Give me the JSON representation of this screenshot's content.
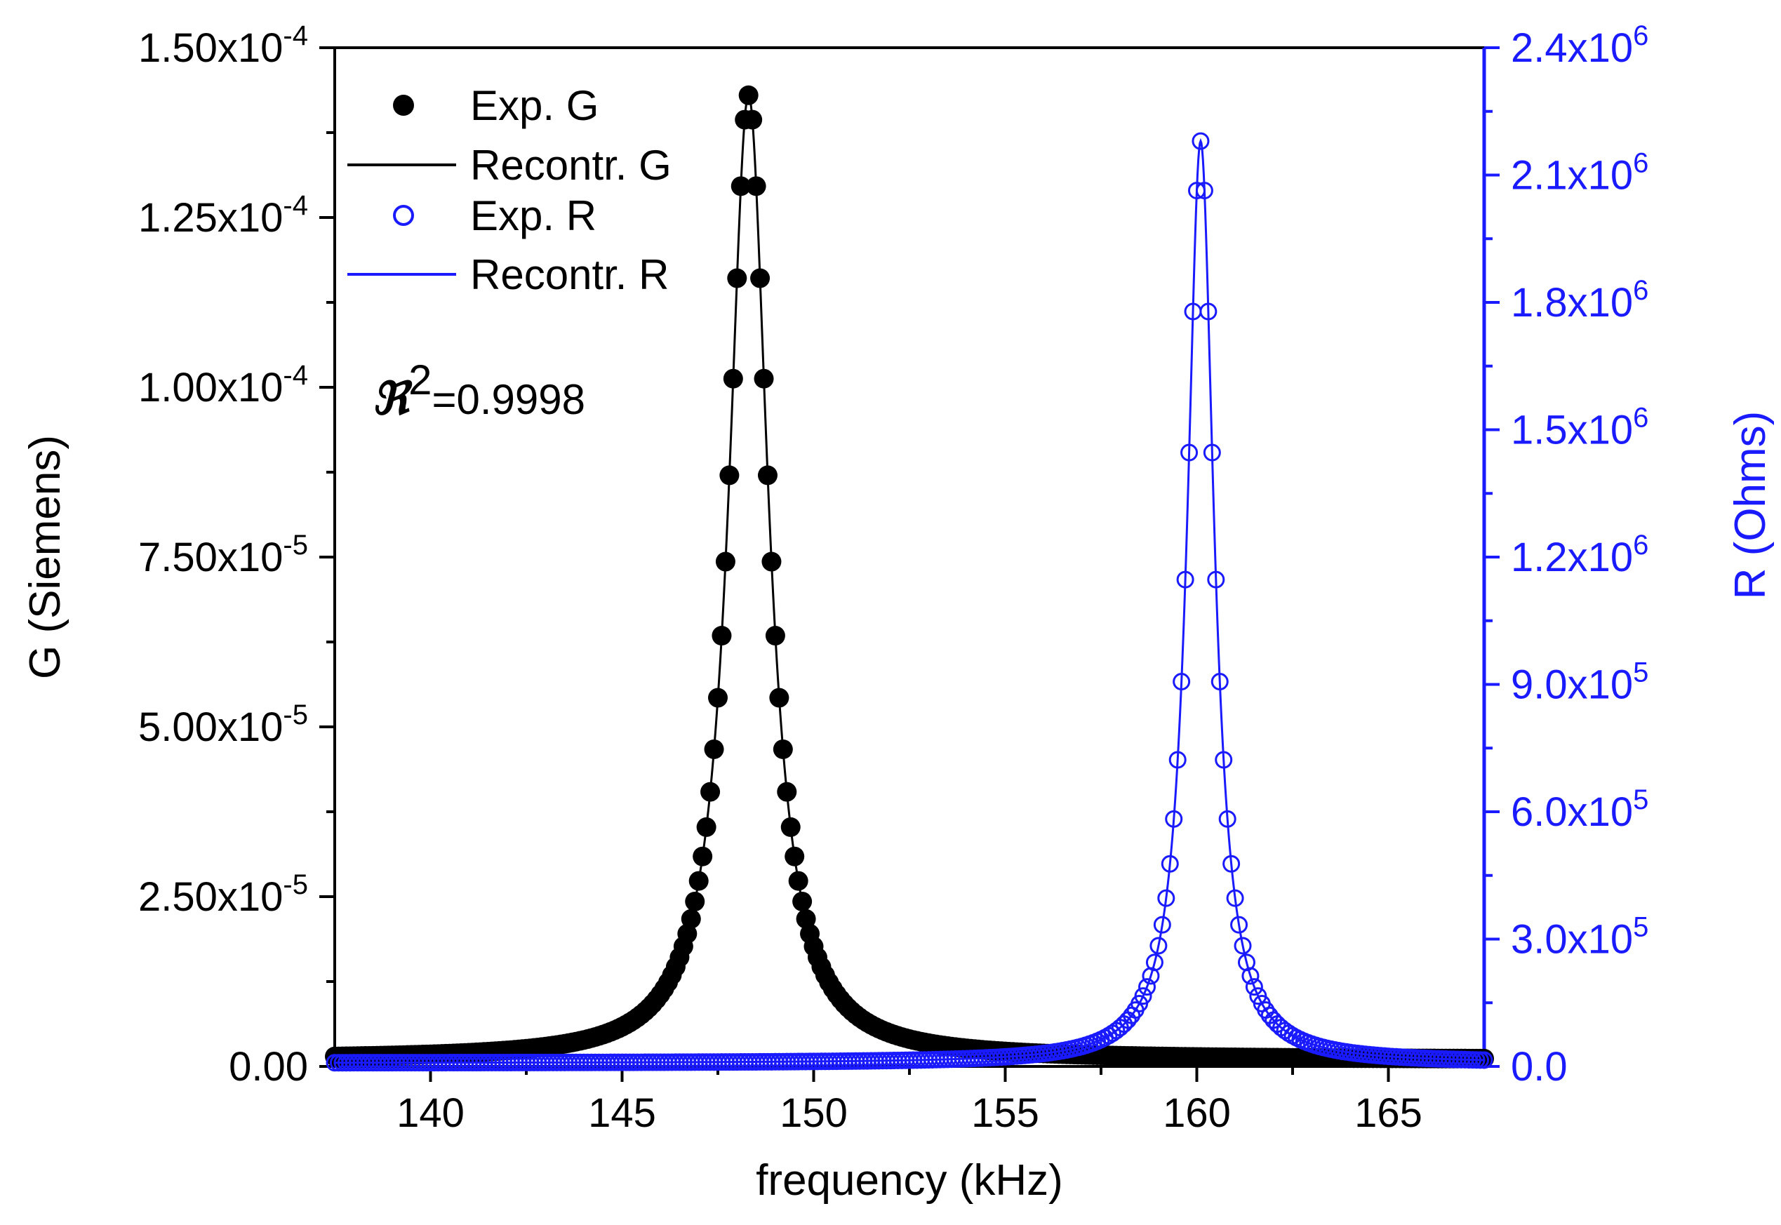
{
  "chart_data": {
    "type": "scatter",
    "title": "",
    "xlabel": "frequency (kHz)",
    "ylabel_left": "G (Siemens)",
    "ylabel_right": "R (Ohms)",
    "xlim": [
      137.5,
      167.5
    ],
    "ylim_left": [
      0,
      0.00015
    ],
    "ylim_right": [
      0,
      2400000
    ],
    "x_ticks": [
      "140",
      "145",
      "150",
      "155",
      "160",
      "165"
    ],
    "x_tick_values": [
      140,
      145,
      150,
      155,
      160,
      165
    ],
    "left_ticks": [
      {
        "value": 0,
        "mantissa": "0.00",
        "exp": ""
      },
      {
        "value": 2.5e-05,
        "mantissa": "2.50x10",
        "exp": "-5"
      },
      {
        "value": 5e-05,
        "mantissa": "5.00x10",
        "exp": "-5"
      },
      {
        "value": 7.5e-05,
        "mantissa": "7.50x10",
        "exp": "-5"
      },
      {
        "value": 0.0001,
        "mantissa": "1.00x10",
        "exp": "-4"
      },
      {
        "value": 0.000125,
        "mantissa": "1.25x10",
        "exp": "-4"
      },
      {
        "value": 0.00015,
        "mantissa": "1.50x10",
        "exp": "-4"
      }
    ],
    "right_ticks": [
      {
        "value": 0,
        "mantissa": "0.0",
        "exp": ""
      },
      {
        "value": 300000,
        "mantissa": "3.0x10",
        "exp": "5"
      },
      {
        "value": 600000,
        "mantissa": "6.0x10",
        "exp": "5"
      },
      {
        "value": 900000,
        "mantissa": "9.0x10",
        "exp": "5"
      },
      {
        "value": 1200000,
        "mantissa": "1.2x10",
        "exp": "6"
      },
      {
        "value": 1500000,
        "mantissa": "1.5x10",
        "exp": "6"
      },
      {
        "value": 1800000,
        "mantissa": "1.8x10",
        "exp": "6"
      },
      {
        "value": 2100000,
        "mantissa": "2.1x10",
        "exp": "6"
      },
      {
        "value": 2400000,
        "mantissa": "2.4x10",
        "exp": "6"
      }
    ],
    "series": [
      {
        "name": "Exp. G",
        "axis": "left",
        "marker": "filled-circle",
        "color": "#000000",
        "x_range": [
          137.5,
          167.5
        ],
        "step": 0.1,
        "model": {
          "kind": "lorentzian",
          "peak_x": 148.3,
          "half_width": 0.62,
          "peak": 0.000143,
          "baseline": 1e-06
        },
        "x_sample": [
          140,
          145,
          147,
          148,
          148.3,
          149,
          150,
          155,
          160,
          165
        ],
        "y_sample": [
          3.2e-06,
          9e-06,
          4e-05,
          0.000133,
          0.000143,
          8.35e-05,
          2.6e-05,
          2.5e-06,
          1.2e-06,
          9e-07
        ]
      },
      {
        "name": "Recontr. G",
        "axis": "left",
        "marker": "line",
        "color": "#000000",
        "model": {
          "kind": "lorentzian",
          "peak_x": 148.3,
          "half_width": 0.62,
          "peak": 0.000143,
          "baseline": 1e-06
        }
      },
      {
        "name": "Exp. R",
        "axis": "right",
        "marker": "open-circle",
        "color": "#1a1aff",
        "x_range": [
          137.5,
          167.5
        ],
        "step": 0.1,
        "model": {
          "kind": "lorentzian",
          "peak_x": 160.1,
          "half_width": 0.42,
          "peak": 2180000,
          "baseline": 8000
        },
        "x_sample": [
          140,
          150,
          155,
          158,
          159,
          160,
          160.1,
          161,
          162,
          165
        ],
        "y_sample": [
          12000,
          25000,
          80000,
          310000,
          580000,
          2050000,
          2180000,
          720000,
          270000,
          50000
        ]
      },
      {
        "name": "Recontr. R",
        "axis": "right",
        "marker": "line",
        "color": "#1a1aff",
        "model": {
          "kind": "lorentzian",
          "peak_x": 160.1,
          "half_width": 0.42,
          "peak": 2180000,
          "baseline": 8000
        }
      }
    ],
    "annotations": [
      {
        "prefix": "ℜ",
        "sup": "2",
        "text": "=0.9998"
      }
    ],
    "legend_position": "top-left",
    "grid": false,
    "colors": {
      "left": "#000000",
      "right": "#1a1aff"
    }
  }
}
